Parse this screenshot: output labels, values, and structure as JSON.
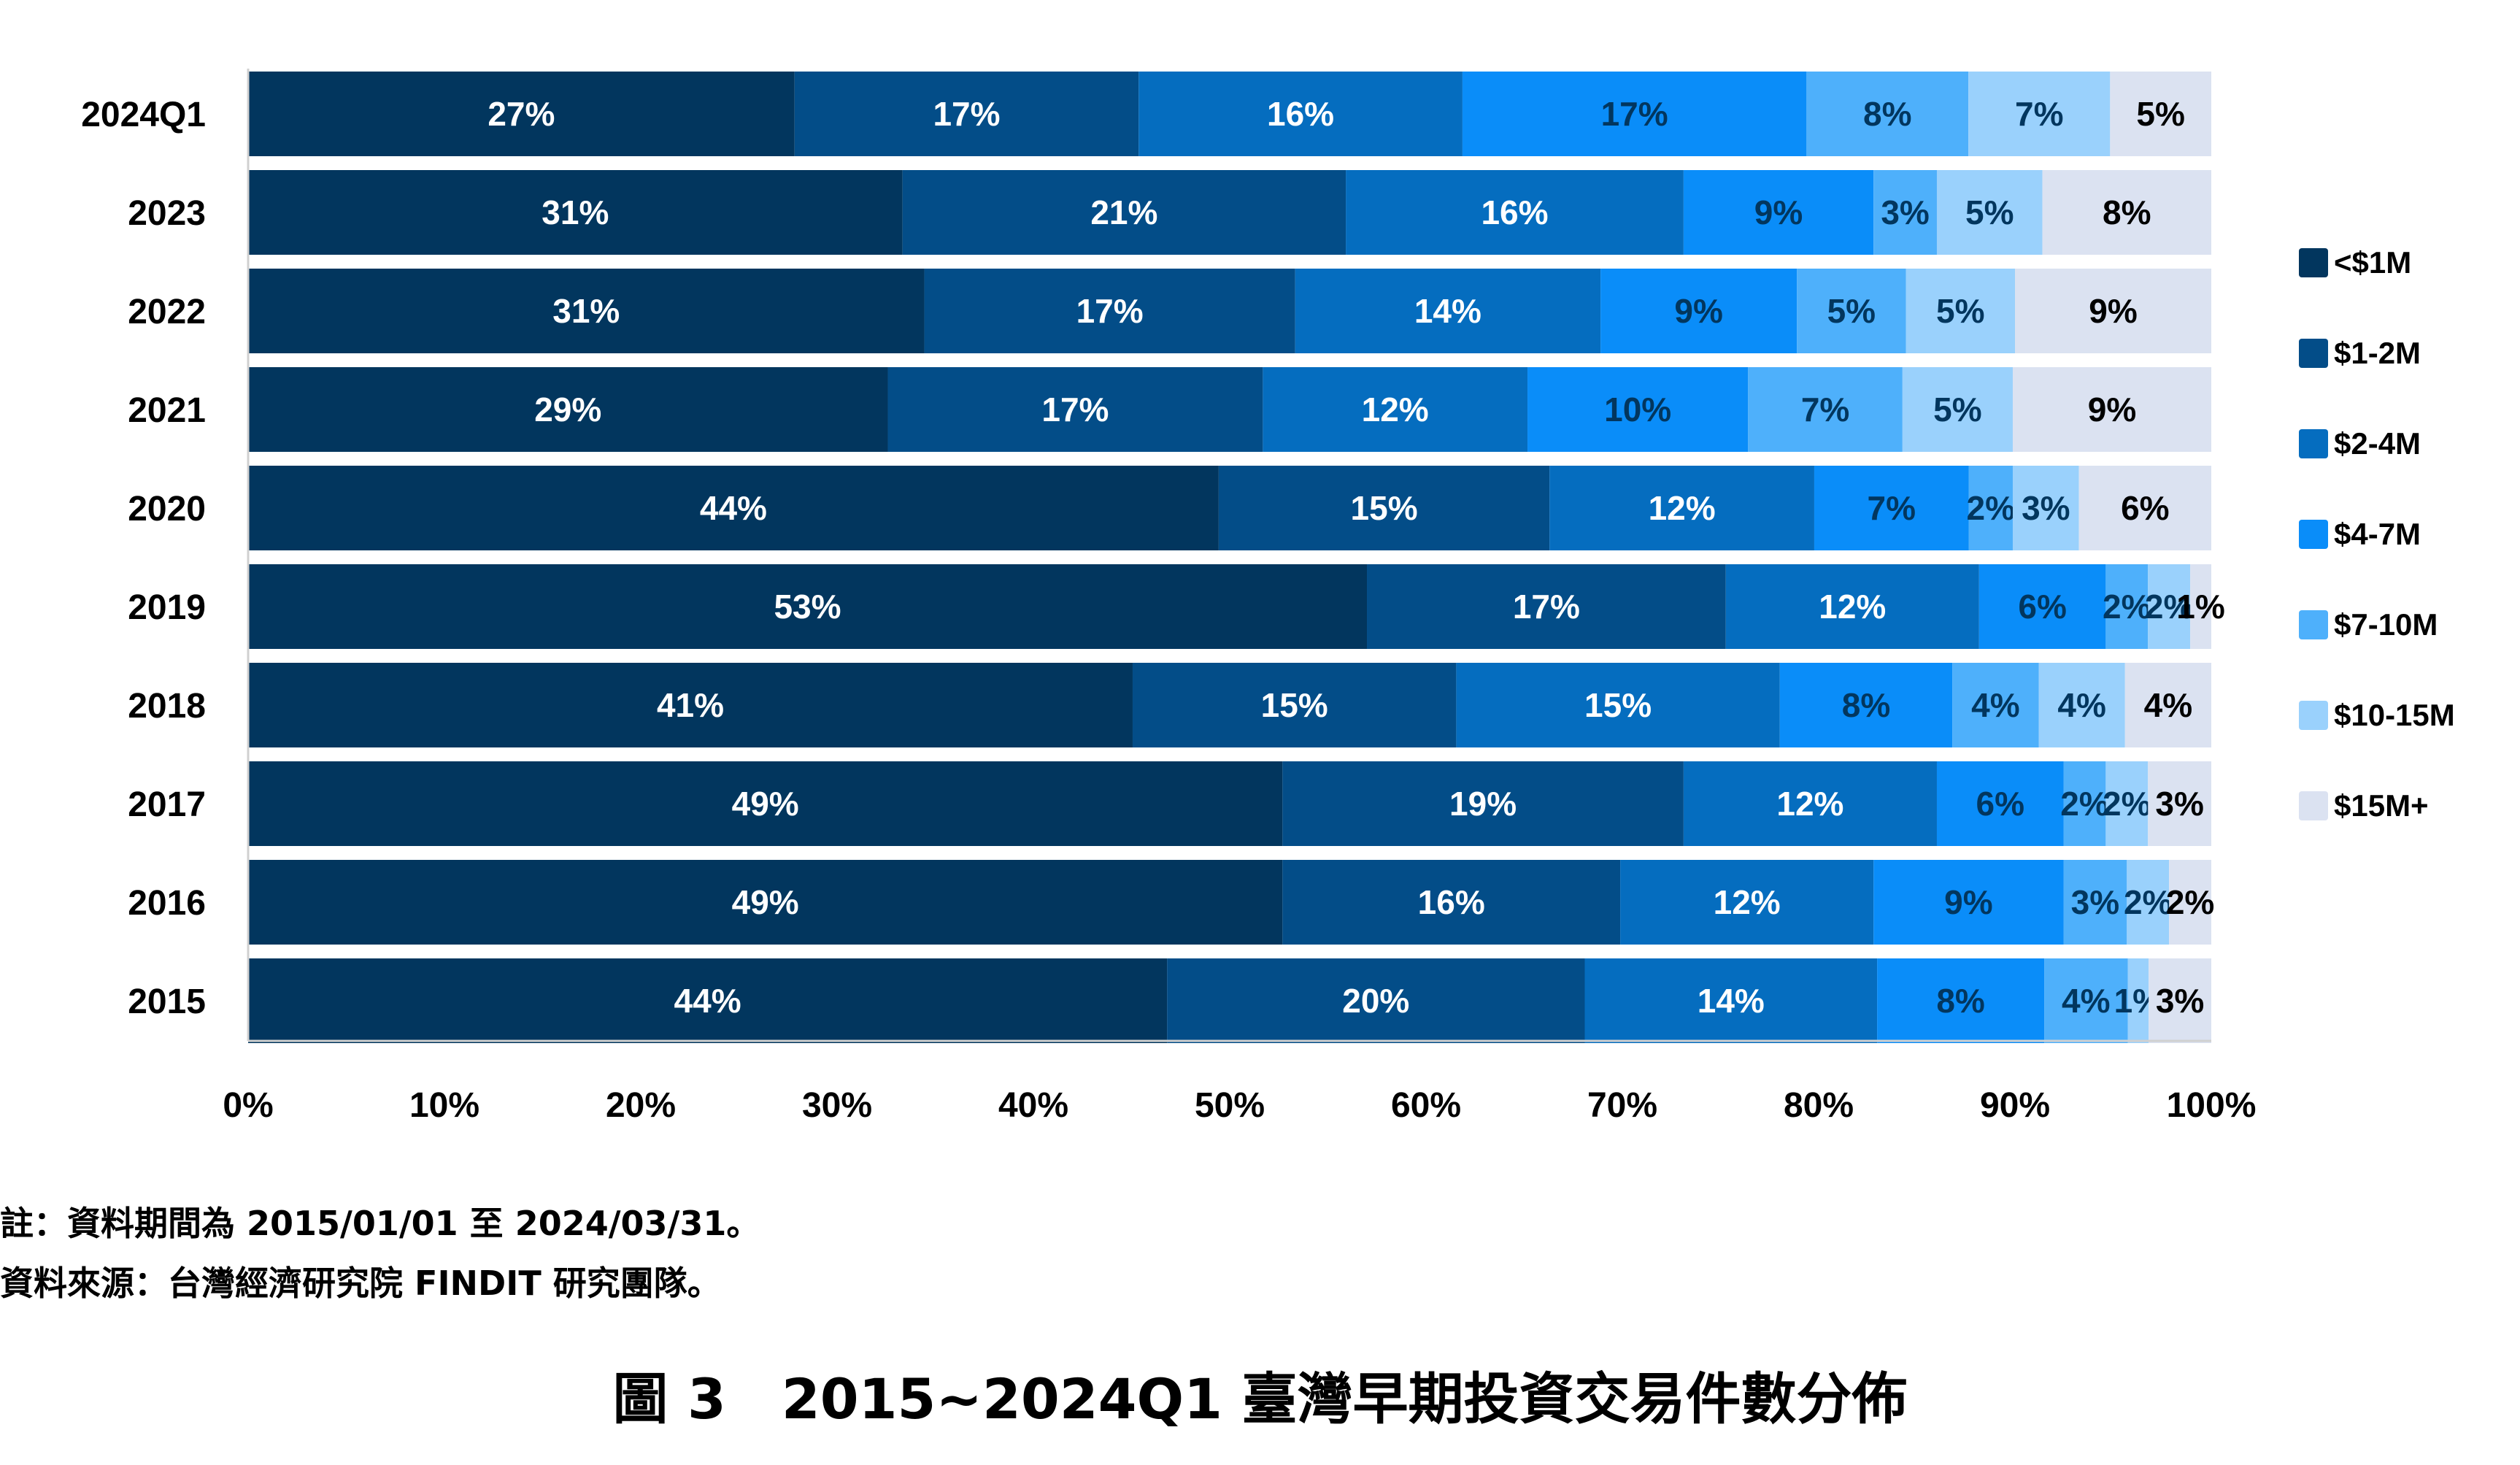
{
  "chart_data": {
    "type": "bar",
    "orientation": "horizontal",
    "stacked": "percent",
    "categories": [
      "2024Q1",
      "2023",
      "2022",
      "2021",
      "2020",
      "2019",
      "2018",
      "2017",
      "2016",
      "2015"
    ],
    "series": [
      {
        "name": "<$1M",
        "color": "#02365e",
        "values": [
          27,
          31,
          31,
          29,
          44,
          53,
          41,
          49,
          49,
          44
        ]
      },
      {
        "name": "$1-2M",
        "color": "#034d88",
        "values": [
          17,
          21,
          17,
          17,
          15,
          17,
          15,
          19,
          16,
          20
        ]
      },
      {
        "name": "$2-4M",
        "color": "#056dbf",
        "values": [
          16,
          16,
          14,
          12,
          12,
          12,
          15,
          12,
          12,
          14
        ]
      },
      {
        "name": "$4-7M",
        "color": "#0a8df9",
        "values": [
          17,
          9,
          9,
          10,
          7,
          6,
          8,
          6,
          9,
          8
        ]
      },
      {
        "name": "$7-10M",
        "color": "#4eb0fb",
        "values": [
          8,
          3,
          5,
          7,
          2,
          2,
          4,
          2,
          3,
          4
        ]
      },
      {
        "name": "$10-15M",
        "color": "#9ad1fc",
        "values": [
          7,
          5,
          5,
          5,
          3,
          2,
          4,
          2,
          2,
          1
        ]
      },
      {
        "name": "$15M+",
        "color": "#dbe2f1",
        "values": [
          5,
          8,
          9,
          9,
          6,
          1,
          4,
          3,
          2,
          3
        ]
      }
    ],
    "xlim": [
      0,
      100
    ],
    "xticks": [
      "0%",
      "10%",
      "20%",
      "30%",
      "40%",
      "50%",
      "60%",
      "70%",
      "80%",
      "90%",
      "100%"
    ],
    "legend_position": "right",
    "grid": false
  },
  "notes": {
    "note1": "註：資料期間為 2015/01/01 至 2024/03/31。",
    "note2": "資料來源：台灣經濟研究院 FINDIT 研究團隊。"
  },
  "caption": "圖 3　2015~2024Q1 臺灣早期投資交易件數分佈"
}
